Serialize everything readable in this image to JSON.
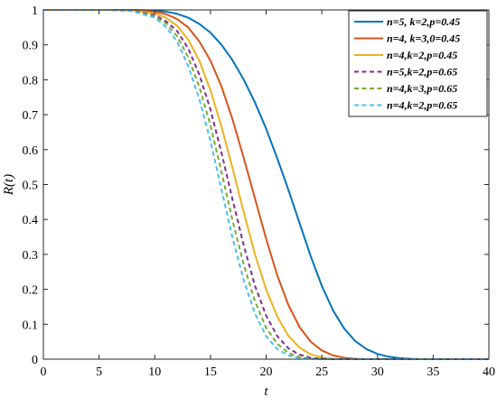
{
  "chart_data": {
    "type": "line",
    "title": "",
    "xlabel": "t",
    "ylabel": "R(t)",
    "xlim": [
      0,
      40
    ],
    "ylim": [
      0,
      1
    ],
    "xticks": [
      0,
      5,
      10,
      15,
      20,
      25,
      30,
      35,
      40
    ],
    "yticks": [
      0,
      0.1,
      0.2,
      0.3,
      0.4,
      0.5,
      0.6,
      0.7,
      0.8,
      0.9,
      1
    ],
    "xtick_labels": [
      "0",
      "5",
      "10",
      "15",
      "20",
      "25",
      "30",
      "35",
      "40"
    ],
    "ytick_labels": [
      "0",
      "0.1",
      "0.2",
      "0.3",
      "0.4",
      "0.5",
      "0.6",
      "0.7",
      "0.8",
      "0.9",
      "1"
    ],
    "grid": false,
    "legend_position": "top-right",
    "x": [
      0,
      2,
      4,
      6,
      8,
      10,
      11,
      12,
      13,
      14,
      15,
      16,
      17,
      18,
      19,
      20,
      21,
      22,
      23,
      24,
      25,
      26,
      27,
      28,
      29,
      30,
      31,
      32,
      33,
      34,
      35,
      36,
      37,
      38,
      40
    ],
    "series": [
      {
        "name": "n=5, k=2,p=0.45",
        "color": "#0072BD",
        "style": "solid",
        "values": [
          1,
          1,
          1,
          1,
          1,
          0.998,
          0.995,
          0.989,
          0.978,
          0.96,
          0.935,
          0.9,
          0.855,
          0.8,
          0.735,
          0.66,
          0.575,
          0.485,
          0.39,
          0.295,
          0.21,
          0.14,
          0.088,
          0.052,
          0.029,
          0.015,
          0.007,
          0.003,
          0.001,
          0,
          0,
          0,
          0,
          0,
          0
        ]
      },
      {
        "name": "n=4, k=3,0=0.45",
        "color": "#D95319",
        "style": "solid",
        "values": [
          1,
          1,
          1,
          1,
          1,
          0.995,
          0.988,
          0.974,
          0.95,
          0.91,
          0.855,
          0.78,
          0.685,
          0.575,
          0.46,
          0.345,
          0.24,
          0.155,
          0.092,
          0.05,
          0.025,
          0.011,
          0.004,
          0.001,
          0,
          0,
          0,
          0,
          0,
          0,
          0,
          0,
          0,
          0,
          0
        ]
      },
      {
        "name": "n=4,k=2,p=0.45",
        "color": "#EDB120",
        "style": "solid",
        "values": [
          1,
          1,
          1,
          1,
          0.999,
          0.99,
          0.978,
          0.955,
          0.915,
          0.855,
          0.77,
          0.665,
          0.545,
          0.42,
          0.3,
          0.2,
          0.122,
          0.067,
          0.033,
          0.014,
          0.005,
          0.001,
          0,
          0,
          0,
          0,
          0,
          0,
          0,
          0,
          0,
          0,
          0,
          0,
          0
        ]
      },
      {
        "name": "n=5,k=2,p=0.65",
        "color": "#7E2F8E",
        "style": "dashed",
        "values": [
          1,
          1,
          1,
          1,
          0.998,
          0.985,
          0.968,
          0.94,
          0.89,
          0.815,
          0.715,
          0.59,
          0.455,
          0.325,
          0.21,
          0.125,
          0.066,
          0.031,
          0.013,
          0.004,
          0.001,
          0,
          0,
          0,
          0,
          0,
          0,
          0,
          0,
          0,
          0,
          0,
          0,
          0,
          0
        ]
      },
      {
        "name": "n=4,k=3,p=0.65",
        "color": "#77AC30",
        "style": "dashed",
        "values": [
          1,
          1,
          1,
          1,
          0.997,
          0.982,
          0.962,
          0.925,
          0.865,
          0.78,
          0.67,
          0.535,
          0.395,
          0.27,
          0.165,
          0.09,
          0.044,
          0.018,
          0.006,
          0.002,
          0,
          0,
          0,
          0,
          0,
          0,
          0,
          0,
          0,
          0,
          0,
          0,
          0,
          0,
          0
        ]
      },
      {
        "name": "n=4,k=2,p=0.65",
        "color": "#4DBEEE",
        "style": "dashed",
        "values": [
          1,
          1,
          1,
          1,
          0.996,
          0.978,
          0.952,
          0.91,
          0.84,
          0.745,
          0.625,
          0.485,
          0.345,
          0.225,
          0.13,
          0.066,
          0.029,
          0.011,
          0.003,
          0.001,
          0,
          0,
          0,
          0,
          0,
          0,
          0,
          0,
          0,
          0,
          0,
          0,
          0,
          0,
          0
        ]
      }
    ]
  }
}
